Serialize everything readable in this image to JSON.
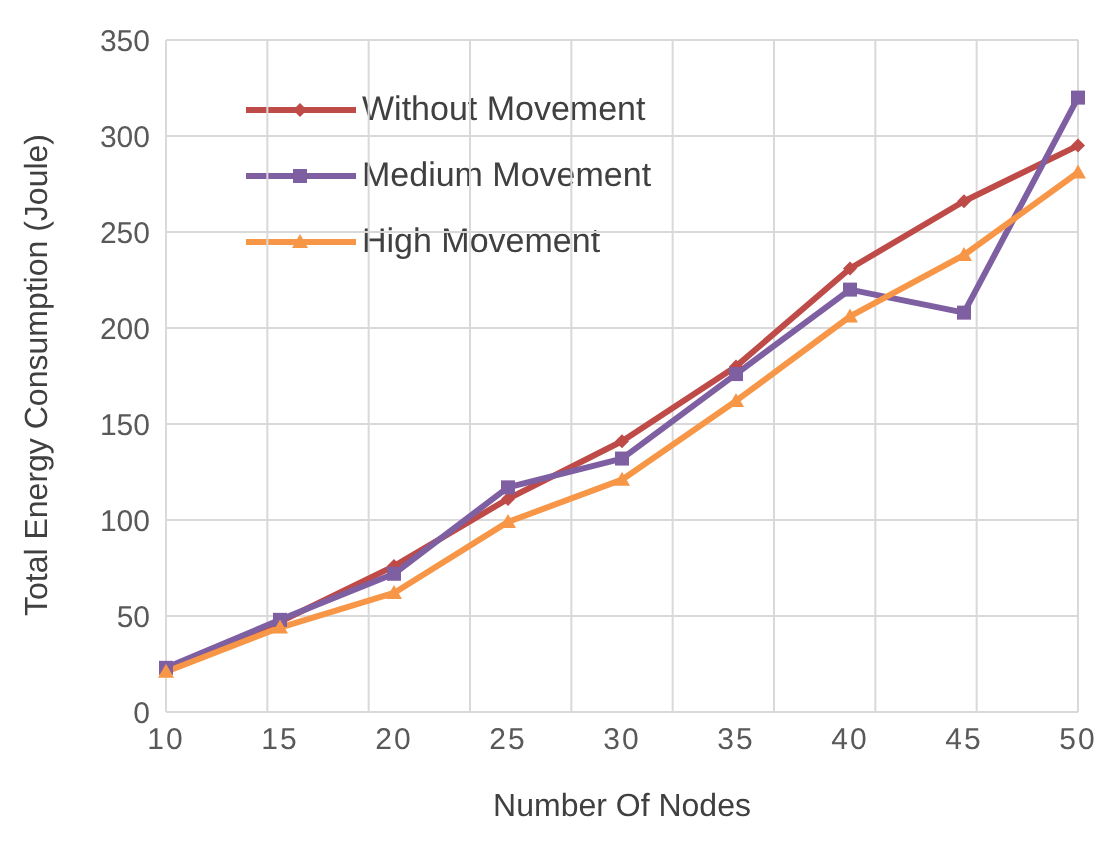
{
  "chart_data": {
    "type": "line",
    "xlabel": "Number Of Nodes",
    "ylabel": "Total Energy Consumption (Joule)",
    "categories": [
      "10",
      "15",
      "20",
      "25",
      "30",
      "35",
      "40",
      "45",
      "50"
    ],
    "series": [
      {
        "name": "Without Movement",
        "color": "#be4b48",
        "marker": "diamond",
        "values": [
          22,
          47,
          76,
          111,
          141,
          180,
          231,
          266,
          295
        ]
      },
      {
        "name": "Medium Movement",
        "color": "#7e5fa1",
        "marker": "square",
        "values": [
          23,
          48,
          72,
          117,
          132,
          176,
          220,
          208,
          320
        ]
      },
      {
        "name": "High Movement",
        "color": "#f79646",
        "marker": "triangle",
        "values": [
          21,
          44,
          62,
          99,
          121,
          162,
          206,
          238,
          281
        ]
      }
    ],
    "ylim": [
      0,
      350
    ],
    "yticks": [
      0,
      50,
      100,
      150,
      200,
      250,
      300,
      350
    ],
    "grid": true,
    "legend": "top left",
    "line_style": "solid"
  }
}
